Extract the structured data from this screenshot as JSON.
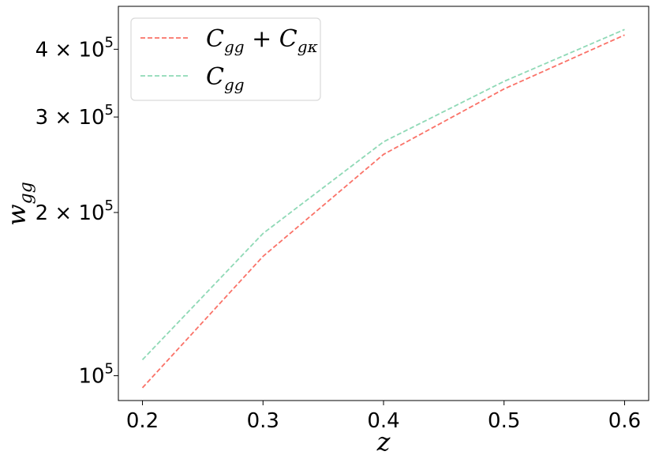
{
  "chart_data": {
    "type": "line",
    "xlabel": "z",
    "ylabel": "w_gg",
    "x_ticks": [
      "0.2",
      "0.3",
      "0.4",
      "0.5",
      "0.6"
    ],
    "y_scale": "log",
    "y_ticks": [
      {
        "value": 100000,
        "mantissa": "",
        "exp": "10",
        "sup": "5"
      },
      {
        "value": 200000,
        "mantissa": "2 × ",
        "exp": "10",
        "sup": "5"
      },
      {
        "value": 300000,
        "mantissa": "3 × ",
        "exp": "10",
        "sup": "5"
      },
      {
        "value": 400000,
        "mantissa": "4 × ",
        "exp": "10",
        "sup": "5"
      }
    ],
    "xlim": [
      0.18,
      0.62
    ],
    "ylim": [
      90000,
      480000
    ],
    "x": [
      0.2,
      0.3,
      0.4,
      0.5,
      0.6
    ],
    "series": [
      {
        "name": "C_gg + C_gκ",
        "color": "#fa7268",
        "values": [
          95000,
          166000,
          256000,
          338000,
          425000
        ]
      },
      {
        "name": "C_gg",
        "color": "#8fd9b6",
        "values": [
          107000,
          183000,
          270000,
          349000,
          435000
        ]
      }
    ],
    "legend": "upper-left",
    "grid": false
  }
}
